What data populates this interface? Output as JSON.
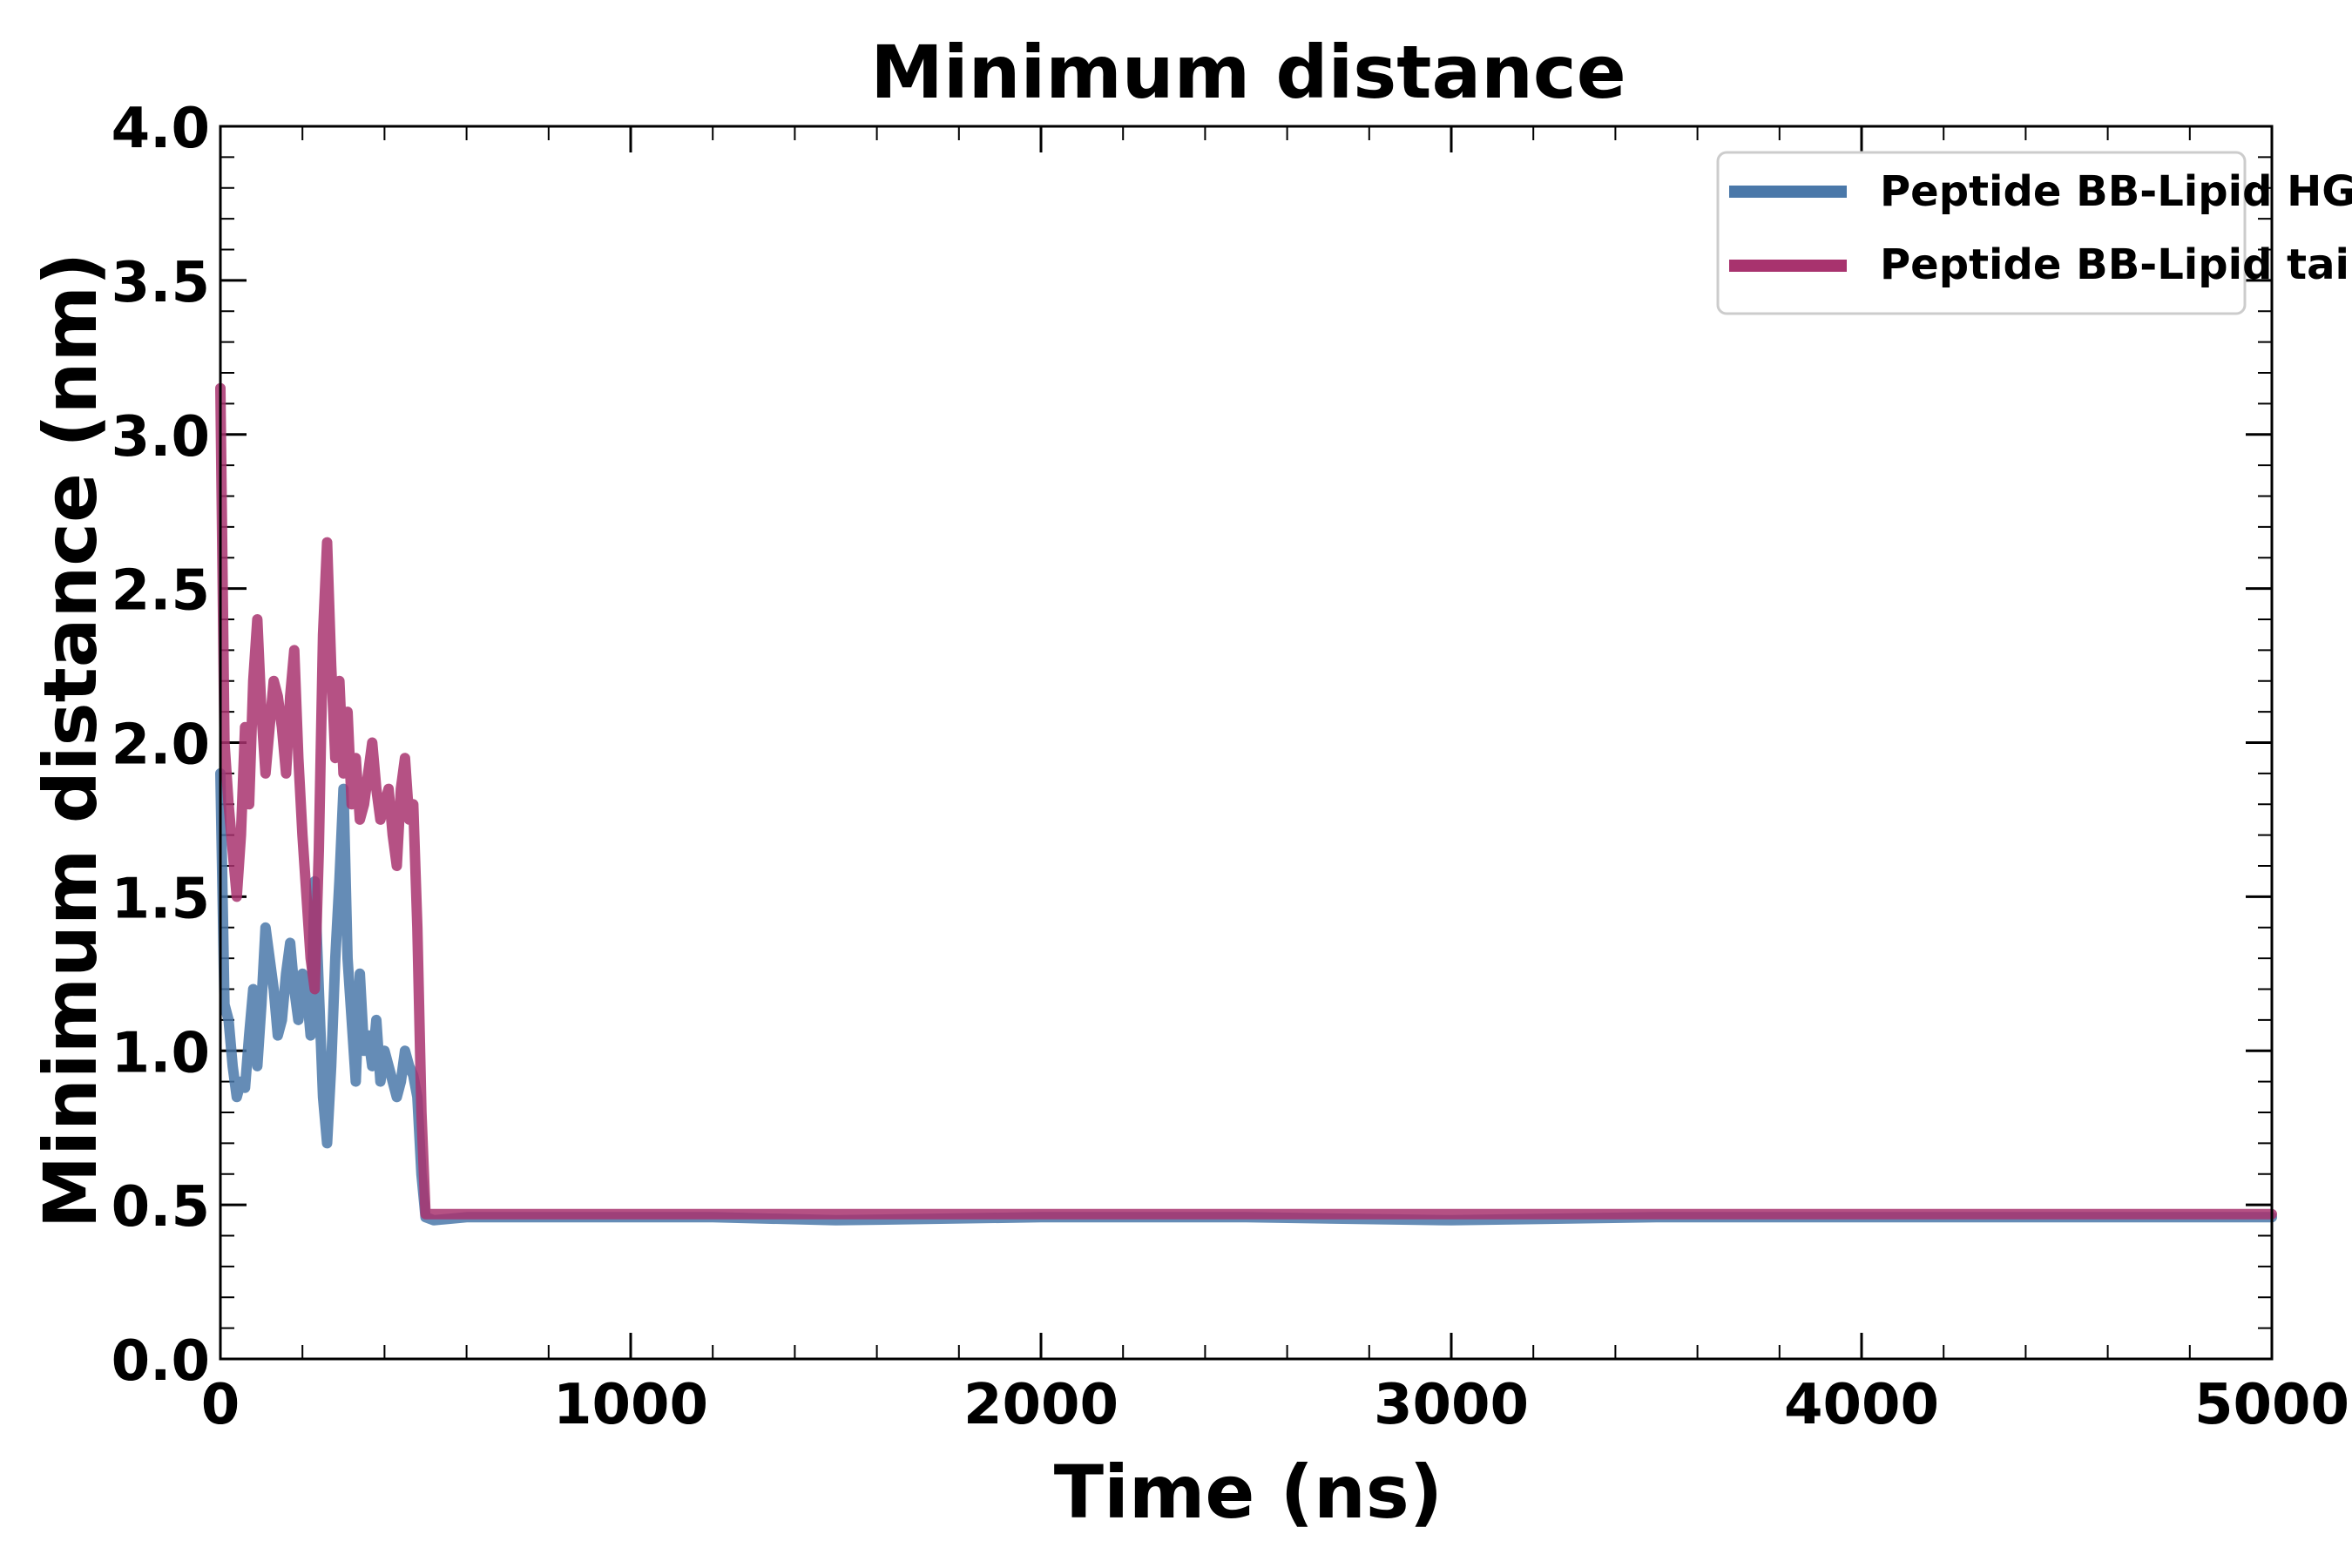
{
  "chart_data": {
    "type": "line",
    "title": "Minimum distance",
    "xlabel": "Time (ns)",
    "ylabel": "Minimum distance (nm)",
    "xlim": [
      0,
      5000
    ],
    "ylim": [
      0.0,
      4.0
    ],
    "x_ticks": [
      0,
      1000,
      2000,
      3000,
      4000,
      5000
    ],
    "x_tick_labels": [
      "0",
      "1000",
      "2000",
      "3000",
      "4000",
      "5000"
    ],
    "y_ticks": [
      0.0,
      0.5,
      1.0,
      1.5,
      2.0,
      2.5,
      3.0,
      3.5,
      4.0
    ],
    "y_tick_labels": [
      "0.0",
      "0.5",
      "1.0",
      "1.5",
      "2.0",
      "2.5",
      "3.0",
      "3.5",
      "4.0"
    ],
    "grid": false,
    "legend_position": "top-right",
    "series": [
      {
        "name": "Peptide BB-Lipid HGs",
        "color": "#4a78a9",
        "x": [
          0,
          10,
          20,
          30,
          40,
          50,
          60,
          70,
          80,
          90,
          100,
          110,
          120,
          130,
          140,
          150,
          160,
          170,
          180,
          190,
          200,
          210,
          220,
          230,
          240,
          250,
          260,
          270,
          280,
          290,
          300,
          310,
          320,
          330,
          340,
          350,
          360,
          370,
          380,
          390,
          400,
          410,
          420,
          430,
          440,
          450,
          460,
          470,
          480,
          490,
          500,
          520,
          600,
          800,
          1000,
          1200,
          1500,
          2000,
          2500,
          3000,
          3500,
          4000,
          4500,
          5000
        ],
        "values": [
          1.9,
          1.15,
          1.1,
          0.95,
          0.85,
          0.9,
          0.88,
          1.05,
          1.2,
          0.95,
          1.15,
          1.4,
          1.3,
          1.2,
          1.05,
          1.1,
          1.25,
          1.35,
          1.2,
          1.1,
          1.25,
          1.2,
          1.05,
          1.55,
          1.2,
          0.85,
          0.7,
          0.95,
          1.3,
          1.55,
          1.85,
          1.3,
          1.1,
          0.9,
          1.25,
          1.0,
          1.05,
          0.95,
          1.1,
          0.9,
          1.0,
          0.95,
          0.9,
          0.85,
          0.9,
          1.0,
          0.95,
          0.92,
          0.85,
          0.6,
          0.46,
          0.45,
          0.46,
          0.46,
          0.46,
          0.46,
          0.45,
          0.46,
          0.46,
          0.45,
          0.46,
          0.46,
          0.46,
          0.46
        ]
      },
      {
        "name": "Peptide BB-Lipid tails",
        "color": "#a8336e",
        "x": [
          0,
          10,
          20,
          30,
          40,
          50,
          60,
          70,
          80,
          90,
          100,
          110,
          120,
          130,
          140,
          150,
          160,
          170,
          180,
          190,
          200,
          210,
          220,
          230,
          240,
          250,
          260,
          270,
          280,
          290,
          300,
          310,
          320,
          330,
          340,
          350,
          360,
          370,
          380,
          390,
          400,
          410,
          420,
          430,
          440,
          450,
          460,
          470,
          480,
          490,
          500,
          520,
          600,
          800,
          1000,
          1200,
          1500,
          2000,
          2500,
          3000,
          3500,
          4000,
          4500,
          5000
        ],
        "values": [
          3.15,
          2.0,
          1.8,
          1.65,
          1.5,
          1.7,
          2.05,
          1.8,
          2.2,
          2.4,
          2.1,
          1.9,
          2.05,
          2.2,
          2.15,
          2.05,
          1.9,
          2.15,
          2.3,
          1.95,
          1.7,
          1.5,
          1.3,
          1.2,
          1.65,
          2.35,
          2.65,
          2.25,
          1.95,
          2.2,
          1.9,
          2.1,
          1.8,
          1.95,
          1.75,
          1.8,
          1.9,
          2.0,
          1.85,
          1.75,
          1.8,
          1.85,
          1.7,
          1.6,
          1.85,
          1.95,
          1.75,
          1.8,
          1.4,
          0.8,
          0.47,
          0.47,
          0.47,
          0.47,
          0.47,
          0.47,
          0.47,
          0.47,
          0.47,
          0.47,
          0.47,
          0.47,
          0.47,
          0.47
        ]
      }
    ]
  }
}
